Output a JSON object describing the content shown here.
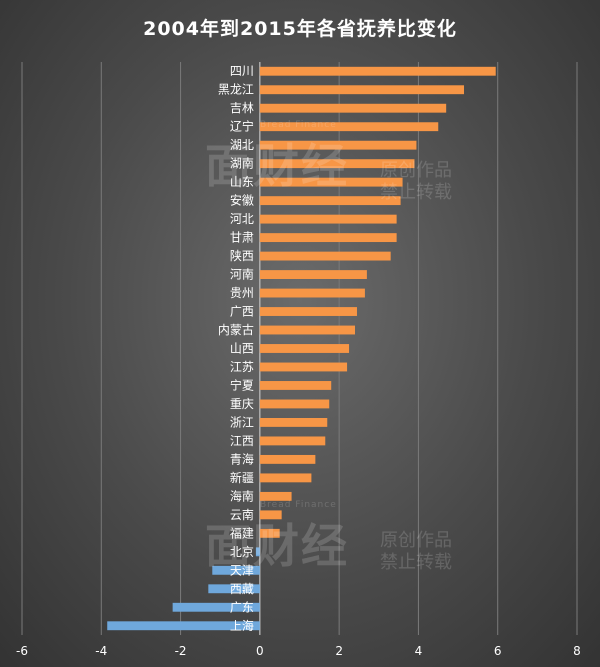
{
  "chart_data": {
    "type": "bar",
    "orientation": "horizontal",
    "title": "2004年到2015年各省抚养比变化",
    "categories": [
      "四川",
      "黑龙江",
      "吉林",
      "辽宁",
      "湖北",
      "湖南",
      "山东",
      "安徽",
      "河北",
      "甘肃",
      "陕西",
      "河南",
      "贵州",
      "广西",
      "内蒙古",
      "山西",
      "江苏",
      "宁夏",
      "重庆",
      "浙江",
      "江西",
      "青海",
      "新疆",
      "海南",
      "云南",
      "福建",
      "北京",
      "天津",
      "西藏",
      "广东",
      "上海"
    ],
    "values": [
      5.95,
      5.15,
      4.7,
      4.5,
      3.95,
      3.9,
      3.6,
      3.55,
      3.45,
      3.45,
      3.3,
      2.7,
      2.65,
      2.45,
      2.4,
      2.25,
      2.2,
      1.8,
      1.75,
      1.7,
      1.65,
      1.4,
      1.3,
      0.8,
      0.55,
      0.5,
      -0.1,
      -1.2,
      -1.3,
      -2.2,
      -3.85
    ],
    "xlim": [
      -6,
      8
    ],
    "xticks": [
      -6,
      -4,
      -2,
      0,
      2,
      4,
      6,
      8
    ],
    "grid": true,
    "colors": {
      "positive": "#f79646",
      "negative": "#6fa8dc",
      "grid": "#7a7a7a",
      "text": "#ffffff"
    }
  },
  "watermark": {
    "logo": "面财经",
    "sub": "Bread Finance",
    "note": "原创作品禁止转载"
  }
}
